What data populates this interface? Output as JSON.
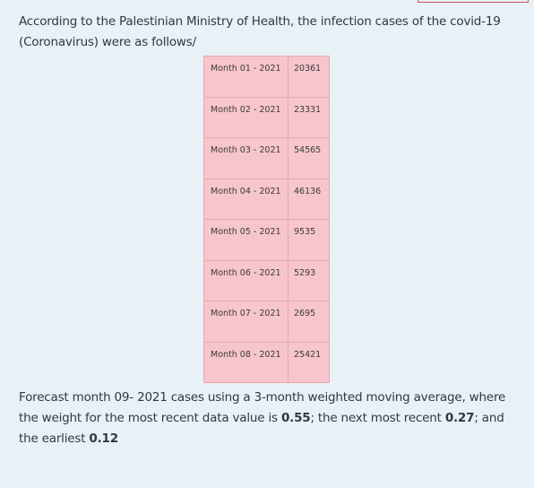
{
  "question": {
    "intro": "According to the Palestinian Ministry of Health, the infection cases of the covid-19 (Coronavirus) were as follows/"
  },
  "table": {
    "rows": [
      {
        "month": "Month 01 - 2021",
        "cases": "20361"
      },
      {
        "month": "Month 02 - 2021",
        "cases": "23331"
      },
      {
        "month": "Month 03 - 2021",
        "cases": "54565"
      },
      {
        "month": "Month 04 - 2021",
        "cases": "46136"
      },
      {
        "month": "Month 05 - 2021",
        "cases": "9535"
      },
      {
        "month": "Month 06 - 2021",
        "cases": "5293"
      },
      {
        "month": "Month 07 - 2021",
        "cases": "2695"
      },
      {
        "month": "Month 08 - 2021",
        "cases": "25421"
      }
    ]
  },
  "forecast": {
    "text_part1": "Forecast month 09- 2021 cases using a 3-month weighted moving average, where the weight for the most recent data value is ",
    "weight_recent": "0.55",
    "text_part2": "; the next most recent ",
    "weight_next": "0.27",
    "text_part3": "; and the earliest ",
    "weight_earliest": "0.12"
  },
  "colors": {
    "page_background": "#e8f1f5",
    "table_cell_background": "#f7c5cc",
    "table_border": "#e7a8b1",
    "text": "#2b3a44"
  }
}
